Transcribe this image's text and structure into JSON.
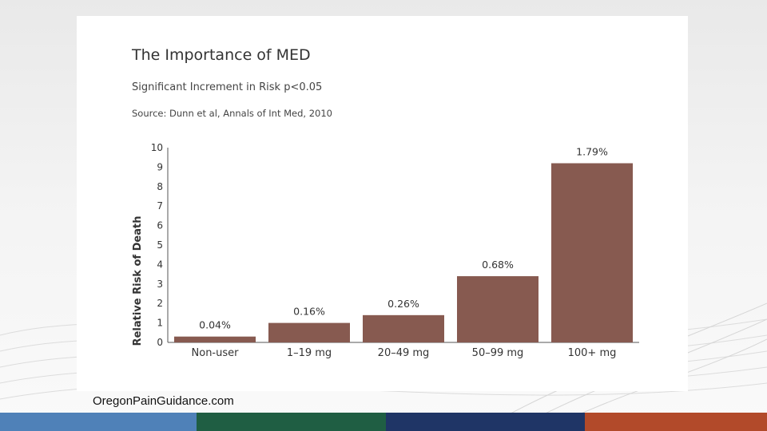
{
  "slide": {
    "footer_url": "OregonPainGuidance.com",
    "footer_colors": [
      "#4f81b8",
      "#1f5e43",
      "#1f3566",
      "#b24a2a"
    ]
  },
  "chart_data": {
    "type": "bar",
    "title": "The Importance of MED",
    "subtitle": "Significant Increment in Risk p<0.05",
    "source": "Source: Dunn et al, Annals of Int Med, 2010",
    "ylabel": "Relative Risk of Death",
    "xlabel": "",
    "ylim": [
      0,
      10
    ],
    "yticks": [
      0,
      1,
      2,
      3,
      4,
      5,
      6,
      7,
      8,
      9,
      10
    ],
    "categories": [
      "Non-user",
      "1–19 mg",
      "20–49 mg",
      "50–99 mg",
      "100+ mg"
    ],
    "values": [
      0.3,
      1.0,
      1.4,
      3.4,
      9.2
    ],
    "data_labels": [
      "0.04%",
      "0.16%",
      "0.26%",
      "0.68%",
      "1.79%"
    ],
    "bar_color": "#875a50",
    "grid": false,
    "legend": "none"
  }
}
